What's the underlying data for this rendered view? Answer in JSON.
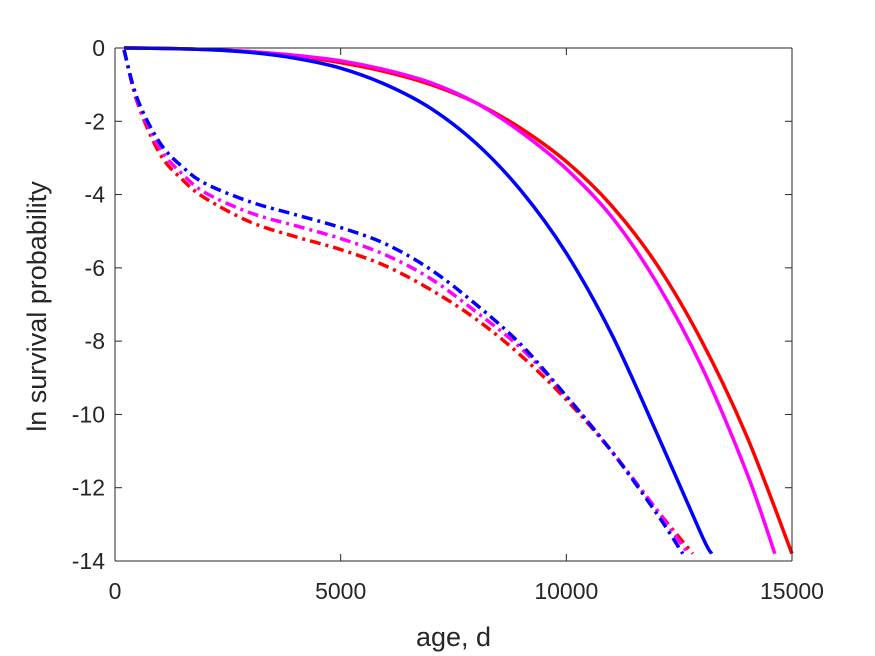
{
  "chart_data": {
    "type": "line",
    "title": "",
    "xlabel": "age, d",
    "ylabel": "ln survival probability",
    "xlim": [
      0,
      15000
    ],
    "ylim": [
      -14,
      0
    ],
    "xticks": [
      0,
      5000,
      10000,
      15000
    ],
    "yticks": [
      0,
      -2,
      -4,
      -6,
      -8,
      -10,
      -12,
      -14
    ],
    "xtick_labels": [
      "0",
      "5000",
      "10000",
      "15000"
    ],
    "ytick_labels": [
      "0",
      "-2",
      "-4",
      "-6",
      "-8",
      "-10",
      "-12",
      "-14"
    ],
    "grid": false,
    "legend": "none",
    "series": [
      {
        "color": "#ff0000",
        "style": "solid",
        "x": [
          200,
          1000,
          2000,
          3000,
          4000,
          5000,
          6000,
          7000,
          8000,
          9000,
          10000,
          11000,
          12000,
          13000,
          14000,
          15000
        ],
        "y": [
          0,
          -0.01,
          -0.04,
          -0.1,
          -0.22,
          -0.4,
          -0.65,
          -1.0,
          -1.5,
          -2.2,
          -3.1,
          -4.3,
          -5.9,
          -8.0,
          -10.6,
          -13.8
        ]
      },
      {
        "color": "#ff00ff",
        "style": "solid",
        "x": [
          200,
          1000,
          2000,
          3000,
          4000,
          5000,
          6000,
          7000,
          8000,
          9000,
          10000,
          11000,
          12000,
          13000,
          14000,
          14620
        ],
        "y": [
          0,
          -0.01,
          -0.04,
          -0.1,
          -0.2,
          -0.35,
          -0.6,
          -0.95,
          -1.5,
          -2.3,
          -3.3,
          -4.6,
          -6.4,
          -8.7,
          -11.6,
          -13.8
        ]
      },
      {
        "color": "#0000ff",
        "style": "solid",
        "x": [
          200,
          1000,
          2000,
          3000,
          4000,
          5000,
          6000,
          7000,
          8000,
          9000,
          10000,
          11000,
          12000,
          13000,
          13220
        ],
        "y": [
          0,
          -0.01,
          -0.04,
          -0.12,
          -0.28,
          -0.55,
          -1.0,
          -1.65,
          -2.6,
          -3.9,
          -5.6,
          -7.8,
          -10.5,
          -13.3,
          -13.8
        ]
      },
      {
        "color": "#ff0000",
        "style": "dashdot",
        "x": [
          200,
          500,
          1000,
          1500,
          2000,
          3000,
          4000,
          5000,
          6000,
          7000,
          8000,
          9000,
          10000,
          11000,
          12000,
          12800
        ],
        "y": [
          -0.05,
          -1.5,
          -2.9,
          -3.6,
          -4.1,
          -4.75,
          -5.15,
          -5.5,
          -5.95,
          -6.6,
          -7.4,
          -8.4,
          -9.6,
          -11.0,
          -12.6,
          -13.8
        ]
      },
      {
        "color": "#ff00ff",
        "style": "dashdot",
        "x": [
          200,
          500,
          1000,
          1500,
          2000,
          3000,
          4000,
          5000,
          6000,
          7000,
          8000,
          9000,
          10000,
          11000,
          12000,
          12700
        ],
        "y": [
          -0.05,
          -1.45,
          -2.75,
          -3.45,
          -3.95,
          -4.5,
          -4.85,
          -5.2,
          -5.65,
          -6.3,
          -7.2,
          -8.2,
          -9.5,
          -11.0,
          -12.6,
          -13.8
        ]
      },
      {
        "color": "#0000ff",
        "style": "dashdot",
        "x": [
          200,
          500,
          1000,
          1500,
          2000,
          3000,
          4000,
          5000,
          6000,
          7000,
          8000,
          9000,
          10000,
          11000,
          12000,
          12580
        ],
        "y": [
          -0.05,
          -1.4,
          -2.6,
          -3.25,
          -3.7,
          -4.2,
          -4.55,
          -4.9,
          -5.35,
          -6.05,
          -7.0,
          -8.1,
          -9.5,
          -11.0,
          -12.7,
          -13.8
        ]
      }
    ]
  }
}
